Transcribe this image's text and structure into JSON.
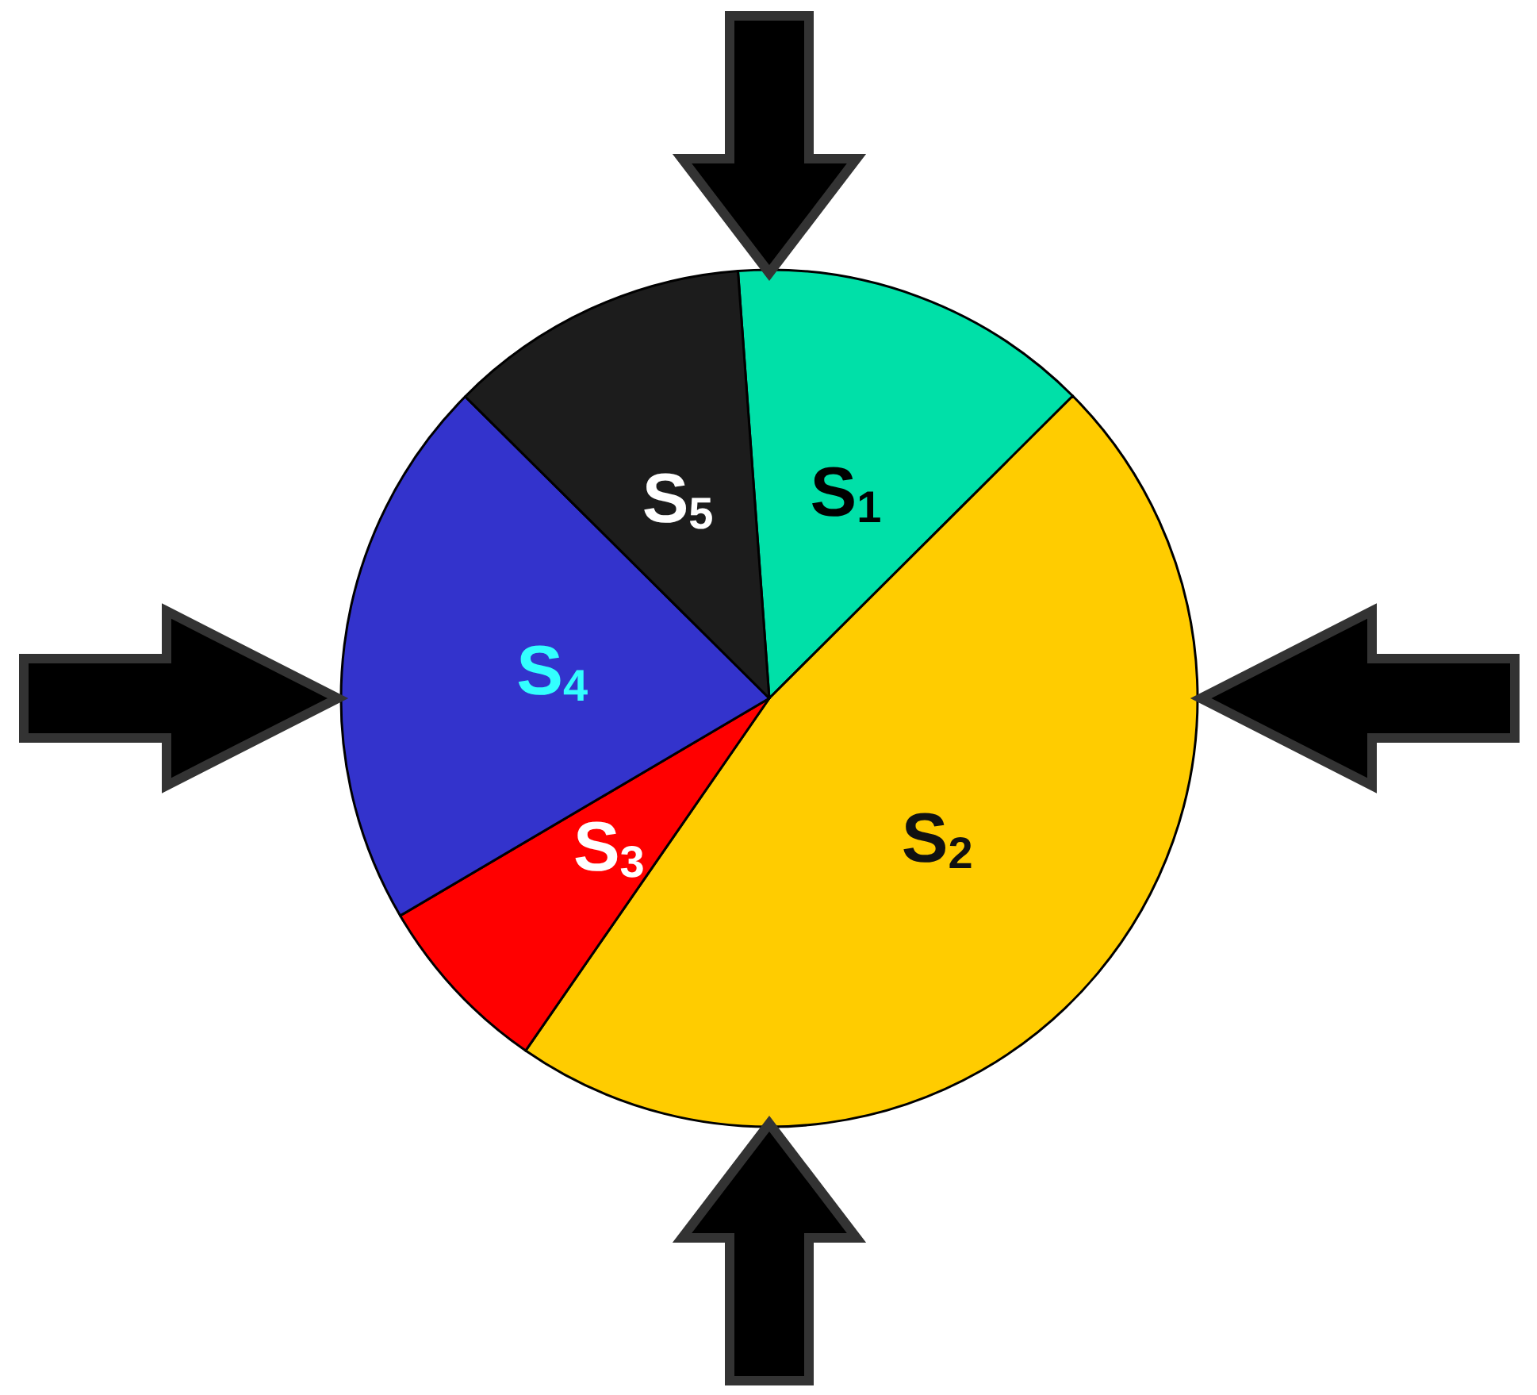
{
  "chart_data": {
    "type": "pie",
    "categories": [
      "S$_{1}$",
      "S$_{2}$",
      "S$_{3}$",
      "S$_{4}$",
      "S$_{5}$"
    ],
    "values": [
      13.7,
      47.1,
      6.9,
      20.9,
      11.4
    ],
    "colors": [
      "#00e0a8",
      "#ffcc00",
      "#ff0000",
      "#3333cc",
      "#1c1c1c"
    ],
    "legend": false
  }
}
